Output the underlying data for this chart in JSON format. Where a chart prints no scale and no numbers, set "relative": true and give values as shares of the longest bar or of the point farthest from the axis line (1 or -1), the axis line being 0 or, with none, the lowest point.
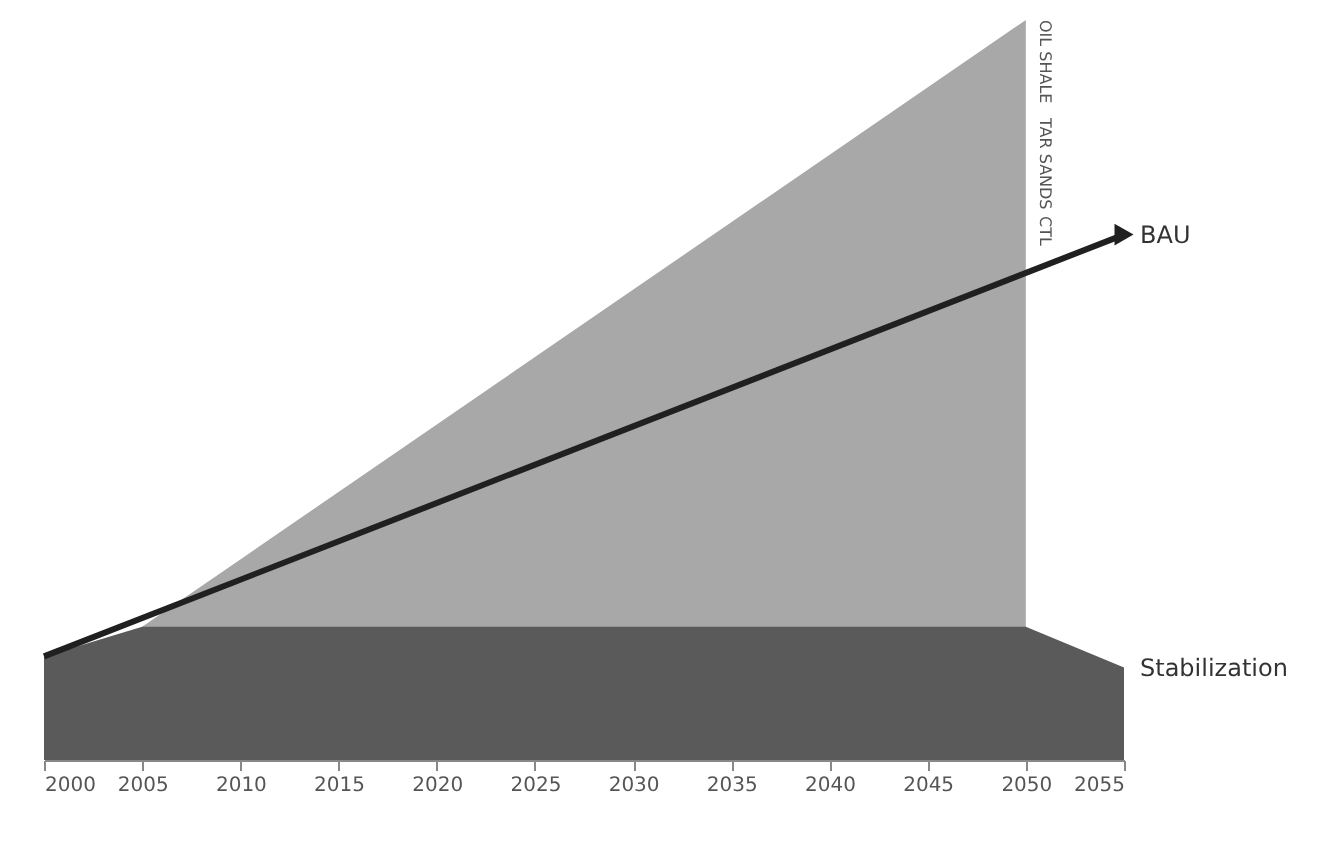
{
  "chart_data": {
    "type": "area",
    "relative": true,
    "xlim": [
      2000,
      2055
    ],
    "xticks": [
      2000,
      2005,
      2010,
      2015,
      2020,
      2025,
      2030,
      2035,
      2040,
      2045,
      2050,
      2055
    ],
    "grid": false,
    "series": [
      {
        "color": "#a8a8a8",
        "x": [
          2005,
          2050
        ],
        "values": [
          0.18,
          1.0
        ]
      },
      {
        "name": "Stabilization",
        "color": "#5a5a5a",
        "x": [
          2000,
          2005,
          2050,
          2055
        ],
        "values": [
          0.14,
          0.18,
          0.18,
          0.125
        ]
      },
      {
        "type": "line",
        "name": "BAU",
        "color": "#202020",
        "x": [
          2000,
          2055
        ],
        "values": [
          0.14,
          0.71
        ]
      }
    ],
    "annotations": [
      "OIL SHALE",
      "TAR SANDS",
      "CTL"
    ]
  }
}
